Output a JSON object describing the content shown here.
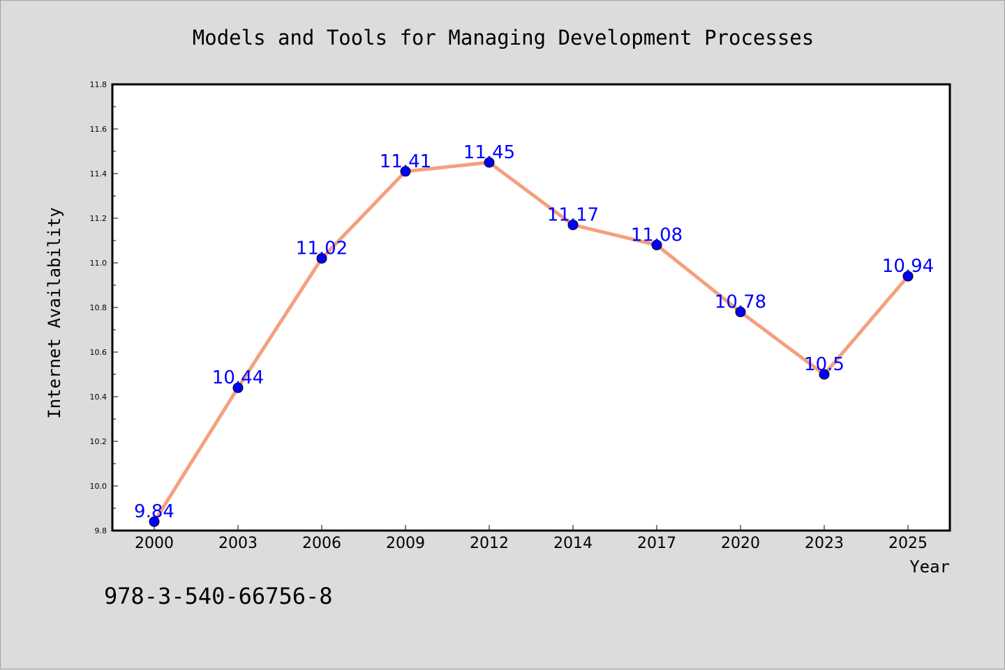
{
  "chart_data": {
    "type": "line",
    "title": "Models and Tools for Managing Development Processes",
    "xlabel": "Year",
    "ylabel": "Internet Availability",
    "categories": [
      "2000",
      "2003",
      "2006",
      "2009",
      "2012",
      "2014",
      "2017",
      "2020",
      "2023",
      "2025"
    ],
    "series": [
      {
        "values": [
          9.84,
          10.44,
          11.02,
          11.41,
          11.45,
          11.17,
          11.08,
          10.78,
          10.5,
          10.94
        ],
        "data_labels": [
          "9.84",
          "10.44",
          "11.02",
          "11.41",
          "11.45",
          "11.17",
          "11.08",
          "10.78",
          "10.5",
          "10.94"
        ]
      }
    ],
    "ylim": [
      9.8,
      11.8
    ],
    "yticks": [
      9.8,
      10.0,
      10.2,
      10.4,
      10.6,
      10.8,
      11.0,
      11.2,
      11.4,
      11.6,
      11.8
    ],
    "ytick_labels": [
      "9.8",
      "10.0",
      "10.2",
      "10.4",
      "10.6",
      "10.8",
      "11.0",
      "11.2",
      "11.4",
      "11.6",
      "11.8"
    ],
    "grid": false,
    "colors": {
      "line": "#f4a07e",
      "marker": "#0000ff",
      "data_label": "#0000ff",
      "background": "#dcdcdc",
      "plot_background": "#ffffff"
    }
  },
  "footnote": "978-3-540-66756-8"
}
